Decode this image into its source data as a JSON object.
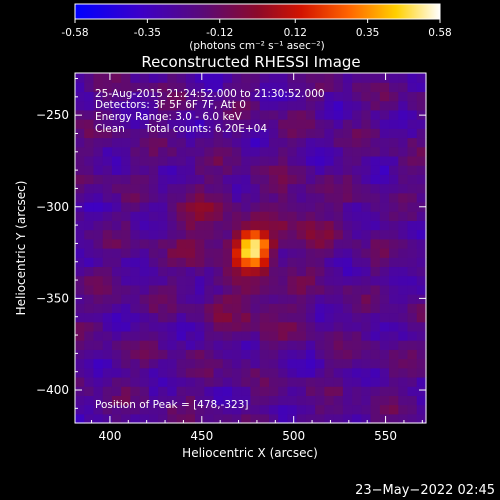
{
  "colorbar": {
    "ticks": [
      "-0.58",
      "-0.35",
      "-0.12",
      "0.12",
      "0.35",
      "0.58"
    ],
    "tick_values": [
      -0.58,
      -0.35,
      -0.12,
      0.12,
      0.35,
      0.58
    ],
    "range": [
      -0.58,
      0.58
    ],
    "colormap": "blue-purple-red-yellow-white (IDL color table 5 style)",
    "units_label": "(photons cm⁻² s⁻¹ asec⁻²)"
  },
  "chart_data": {
    "type": "heatmap",
    "title": "Reconstructed RHESSI Image",
    "xlabel": "Heliocentric X (arcsec)",
    "ylabel": "Heliocentric Y (arcsec)",
    "xlim": [
      381,
      572
    ],
    "ylim": [
      -418,
      -227
    ],
    "x_ticks": [
      400,
      450,
      500,
      550
    ],
    "y_ticks": [
      -250,
      -300,
      -350,
      -400
    ],
    "x_tick_labels": [
      "400",
      "450",
      "500",
      "550"
    ],
    "y_tick_labels": [
      "−250",
      "−300",
      "−350",
      "−400"
    ],
    "peak": {
      "x": 478,
      "y": -323,
      "value": 0.58
    },
    "annotations": {
      "time": "25-Aug-2015 21:24:52.000 to 21:30:52.000",
      "detectors": "Detectors: 3F 5F 6F 7F, Att 0",
      "energy": "Energy Range: 3.0 - 6.0 keV",
      "clean_label": "Clean",
      "counts": "Total counts: 6.20E+04",
      "peak_position": "Position of Peak = [478,-323]"
    }
  },
  "footer": {
    "date": "23−May−2022 02:45"
  }
}
